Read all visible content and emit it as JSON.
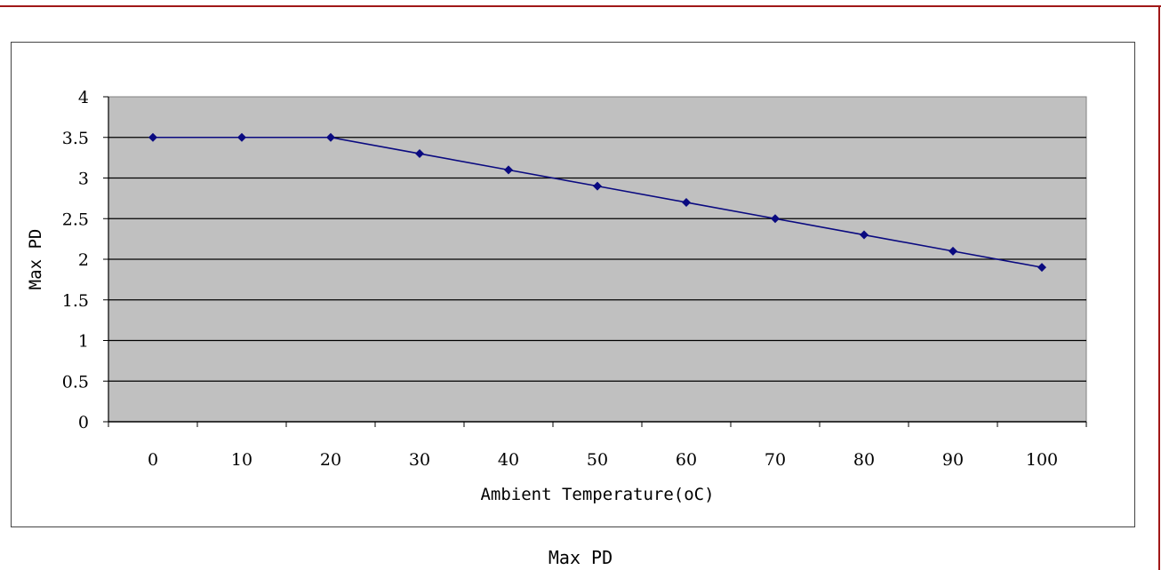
{
  "caption": "Max PD",
  "colors": {
    "plot_background": "#c0c0c0",
    "series_line": "#0a0a80",
    "gridline": "#000000",
    "frame": "#a01818"
  },
  "chart_data": {
    "type": "line",
    "title": "",
    "xlabel": "Ambient Temperature(oC)",
    "ylabel": "Max PD",
    "categories": [
      "0",
      "10",
      "20",
      "30",
      "40",
      "50",
      "60",
      "70",
      "80",
      "90",
      "100"
    ],
    "y_ticks": [
      "0",
      "0.5",
      "1",
      "1.5",
      "2",
      "2.5",
      "3",
      "3.5",
      "4"
    ],
    "ylim": [
      0,
      4
    ],
    "grid": true,
    "legend": "none",
    "marker": "diamond",
    "series": [
      {
        "values": [
          3.5,
          3.5,
          3.5,
          3.3,
          3.1,
          2.9,
          2.7,
          2.5,
          2.3,
          2.1,
          1.9
        ]
      }
    ]
  }
}
